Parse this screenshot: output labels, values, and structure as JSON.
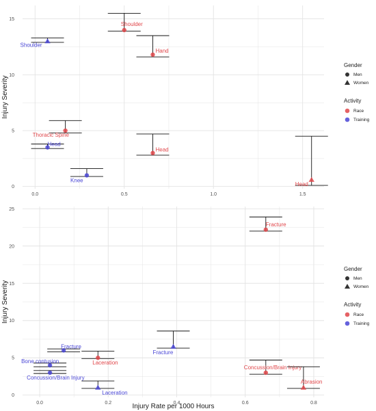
{
  "colors": {
    "race": "#e0464a",
    "training": "#4a47d6",
    "grid": "#e3e3e3",
    "errorbar": "#111111"
  },
  "shared_xlabel": "Injury Rate per 1000 Hours",
  "chart_data": [
    {
      "type": "scatter",
      "title": "",
      "xlabel": "",
      "ylabel": "Injury Severity",
      "xlim": [
        -0.07,
        1.62
      ],
      "ylim": [
        -0.2,
        16.2
      ],
      "xticks": [
        "0.0",
        "0.5",
        "1.0",
        "1.5"
      ],
      "xtick_values": [
        0,
        0.5,
        1.0,
        1.5
      ],
      "yticks": [
        "0",
        "5",
        "10",
        "15"
      ],
      "ytick_values": [
        0,
        5,
        10,
        15
      ],
      "legend": {
        "gender_title": "Gender",
        "gender_items": [
          {
            "label": "Men",
            "shape": "circle"
          },
          {
            "label": "Women",
            "shape": "triangle"
          }
        ],
        "activity_title": "Activity",
        "activity_items": [
          {
            "label": "Race",
            "color": "race"
          },
          {
            "label": "Training",
            "color": "training"
          }
        ]
      },
      "points": [
        {
          "label": "Shoulder",
          "x": 0.07,
          "y": 13.0,
          "lo": 12.9,
          "hi": 13.3,
          "activity": "training",
          "gender": "women",
          "ldx": -40,
          "ldy": 8
        },
        {
          "label": "Shoulder",
          "x": 0.5,
          "y": 14.0,
          "lo": 13.9,
          "hi": 15.5,
          "activity": "race",
          "gender": "men",
          "ldx": -5,
          "ldy": -6
        },
        {
          "label": "Hand",
          "x": 0.66,
          "y": 11.8,
          "lo": 11.6,
          "hi": 13.5,
          "activity": "race",
          "gender": "men",
          "ldx": 4,
          "ldy": -3
        },
        {
          "label": "Thoracic Spine",
          "x": 0.17,
          "y": 5.0,
          "lo": 4.8,
          "hi": 5.9,
          "activity": "race",
          "gender": "men",
          "ldx": -48,
          "ldy": 9
        },
        {
          "label": "Head",
          "x": 0.07,
          "y": 3.5,
          "lo": 3.4,
          "hi": 3.8,
          "activity": "training",
          "gender": "men",
          "ldx": 0,
          "ldy": -2
        },
        {
          "label": "Knee",
          "x": 0.29,
          "y": 1.0,
          "lo": 0.9,
          "hi": 1.6,
          "activity": "training",
          "gender": "men",
          "ldx": -24,
          "ldy": 10
        },
        {
          "label": "Head",
          "x": 0.66,
          "y": 3.0,
          "lo": 2.8,
          "hi": 4.7,
          "activity": "race",
          "gender": "men",
          "ldx": 4,
          "ldy": -2
        },
        {
          "label": "Head",
          "x": 1.55,
          "y": 0.6,
          "lo": 0.1,
          "hi": 4.5,
          "activity": "race",
          "gender": "women",
          "ldx": -24,
          "ldy": 9
        }
      ]
    },
    {
      "type": "scatter",
      "title": "",
      "xlabel": "Injury Rate per 1000 Hours",
      "ylabel": "Injury Severity",
      "xlim": [
        -0.05,
        0.83
      ],
      "ylim": [
        -0.3,
        25.3
      ],
      "xticks": [
        "0.0",
        "0.2",
        "0.4",
        "0.6",
        "0.8"
      ],
      "xtick_values": [
        0,
        0.2,
        0.4,
        0.6,
        0.8
      ],
      "yticks": [
        "0",
        "5",
        "10",
        "15",
        "20",
        "25"
      ],
      "ytick_values": [
        0,
        5,
        10,
        15,
        20,
        25
      ],
      "legend": {
        "gender_title": "Gender",
        "gender_items": [
          {
            "label": "Men",
            "shape": "circle"
          },
          {
            "label": "Women",
            "shape": "triangle"
          }
        ],
        "activity_title": "Activity",
        "activity_items": [
          {
            "label": "Race",
            "color": "race"
          },
          {
            "label": "Training",
            "color": "training"
          }
        ]
      },
      "points": [
        {
          "label": "Fracture",
          "x": 0.66,
          "y": 22.2,
          "lo": 22.0,
          "hi": 23.9,
          "activity": "race",
          "gender": "men",
          "ldx": 0,
          "ldy": -5
        },
        {
          "label": "Fracture",
          "x": 0.07,
          "y": 6.0,
          "lo": 5.8,
          "hi": 6.2,
          "activity": "training",
          "gender": "men",
          "ldx": -4,
          "ldy": -3
        },
        {
          "label": "Laceration",
          "x": 0.17,
          "y": 5.0,
          "lo": 4.9,
          "hi": 5.9,
          "activity": "race",
          "gender": "men",
          "ldx": -8,
          "ldy": 10
        },
        {
          "label": "Bone contusion",
          "x": 0.03,
          "y": 4.0,
          "lo": 3.8,
          "hi": 4.3,
          "activity": "training",
          "gender": "men",
          "ldx": -42,
          "ldy": -3
        },
        {
          "label": "Concussion/Brain Injury",
          "x": 0.03,
          "y": 3.0,
          "lo": 2.9,
          "hi": 3.3,
          "activity": "training",
          "gender": "men",
          "ldx": -34,
          "ldy": 10
        },
        {
          "label": "Laceration",
          "x": 0.17,
          "y": 1.0,
          "lo": 0.9,
          "hi": 1.9,
          "activity": "training",
          "gender": "women",
          "ldx": 6,
          "ldy": 10
        },
        {
          "label": "Fracture",
          "x": 0.39,
          "y": 6.5,
          "lo": 6.3,
          "hi": 8.6,
          "activity": "training",
          "gender": "women",
          "ldx": -30,
          "ldy": 11
        },
        {
          "label": "Concussion/Brain Injury",
          "x": 0.66,
          "y": 3.0,
          "lo": 2.8,
          "hi": 4.7,
          "activity": "race",
          "gender": "men",
          "ldx": -32,
          "ldy": -5
        },
        {
          "label": "Abrasion",
          "x": 0.77,
          "y": 1.0,
          "lo": 0.9,
          "hi": 3.8,
          "activity": "race",
          "gender": "women",
          "ldx": -4,
          "ldy": -6
        }
      ]
    }
  ]
}
